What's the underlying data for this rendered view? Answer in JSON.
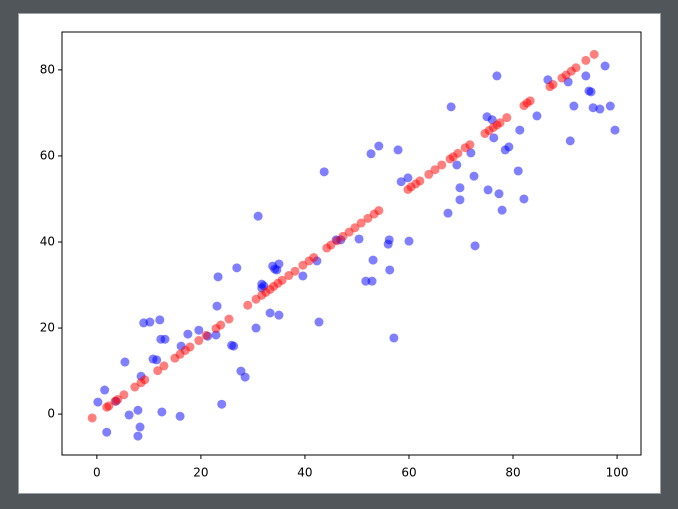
{
  "chart_data": {
    "type": "scatter",
    "xlim": [
      -6.7,
      104.6
    ],
    "ylim": [
      -9.5,
      88.8
    ],
    "xticks": [
      0,
      20,
      40,
      60,
      80,
      100
    ],
    "yticks": [
      0,
      20,
      40,
      60,
      80
    ],
    "grid": false,
    "series": [
      {
        "color": "#0000ff",
        "alpha": 0.5,
        "x": [
          0.2,
          1.5,
          1.9,
          3.7,
          5.4,
          6.2,
          7.9,
          7.9,
          8.3,
          8.5,
          9.0,
          10.2,
          10.8,
          11.5,
          12.1,
          12.3,
          12.5,
          13.1,
          16.0,
          16.2,
          17.5,
          19.6,
          21.3,
          22.9,
          23.1,
          23.3,
          24.0,
          25.9,
          26.3,
          26.9,
          27.7,
          28.5,
          30.6,
          31.0,
          31.7,
          31.7,
          32.1,
          33.3,
          33.8,
          34.2,
          34.6,
          35.0,
          35.0,
          39.6,
          42.3,
          42.7,
          43.7,
          46.0,
          46.9,
          50.4,
          51.7,
          52.9,
          52.7,
          53.1,
          54.2,
          56.0,
          56.2,
          56.3,
          57.1,
          57.9,
          58.5,
          59.8,
          60.0,
          67.5,
          68.1,
          69.2,
          69.8,
          69.8,
          71.9,
          72.5,
          72.7,
          75.0,
          75.2,
          76.0,
          76.3,
          76.9,
          77.3,
          77.9,
          78.5,
          79.2,
          81.0,
          81.3,
          82.1,
          84.6,
          86.7,
          90.6,
          91.0,
          91.7,
          94.0,
          94.6,
          95.0,
          95.4,
          96.7,
          97.7,
          98.7,
          99.6
        ],
        "values": [
          2.8,
          5.6,
          -4.2,
          3.0,
          12.1,
          -0.2,
          0.9,
          -5.1,
          -3.0,
          8.8,
          21.2,
          21.4,
          12.8,
          12.6,
          21.9,
          17.4,
          0.5,
          17.4,
          -0.5,
          15.8,
          18.6,
          19.5,
          18.1,
          18.4,
          25.1,
          31.9,
          2.3,
          16.0,
          15.8,
          34.0,
          10.0,
          8.6,
          20.0,
          46.0,
          30.2,
          29.3,
          29.8,
          23.5,
          34.4,
          33.7,
          33.5,
          34.9,
          23.0,
          32.1,
          35.6,
          21.4,
          56.3,
          40.5,
          40.5,
          40.7,
          30.9,
          30.9,
          60.5,
          35.8,
          62.3,
          39.5,
          40.5,
          33.5,
          17.7,
          61.4,
          54.0,
          54.9,
          40.2,
          46.7,
          71.4,
          57.9,
          49.8,
          52.6,
          60.7,
          55.3,
          39.1,
          69.1,
          52.1,
          68.4,
          64.2,
          78.6,
          51.2,
          47.4,
          61.4,
          62.1,
          56.5,
          66.0,
          50.0,
          69.3,
          77.7,
          77.2,
          63.5,
          71.6,
          78.6,
          75.1,
          74.9,
          71.2,
          70.9,
          80.9,
          71.6,
          66.0
        ]
      },
      {
        "color": "#ff0000",
        "alpha": 0.5,
        "x": [
          -0.9,
          1.9,
          2.3,
          3.5,
          4.0,
          5.2,
          7.3,
          8.5,
          9.2,
          11.7,
          12.9,
          15.0,
          16.0,
          17.0,
          17.9,
          19.6,
          21.0,
          22.9,
          23.8,
          25.4,
          29.0,
          30.6,
          31.7,
          32.5,
          33.3,
          34.0,
          34.8,
          35.6,
          36.9,
          38.1,
          39.6,
          40.8,
          41.7,
          44.2,
          45.0,
          46.2,
          47.3,
          48.5,
          49.6,
          50.8,
          52.1,
          53.3,
          54.2,
          59.8,
          60.4,
          61.3,
          62.1,
          63.8,
          65.0,
          66.3,
          67.9,
          68.5,
          69.4,
          70.8,
          71.7,
          74.6,
          75.4,
          76.2,
          76.9,
          77.5,
          78.8,
          82.1,
          82.7,
          83.3,
          87.1,
          87.7,
          89.4,
          90.2,
          91.2,
          92.1,
          94.0,
          95.6
        ],
        "values": [
          -0.9,
          1.6,
          1.9,
          3.0,
          3.4,
          4.5,
          6.3,
          7.3,
          8.0,
          10.1,
          11.2,
          13.0,
          13.9,
          14.8,
          15.6,
          17.1,
          18.3,
          19.9,
          20.7,
          22.1,
          25.3,
          26.7,
          27.6,
          28.3,
          29.0,
          29.7,
          30.4,
          31.1,
          32.2,
          33.2,
          34.6,
          35.6,
          36.4,
          38.6,
          39.3,
          40.3,
          41.3,
          42.3,
          43.3,
          44.4,
          45.5,
          46.5,
          47.3,
          52.2,
          52.8,
          53.5,
          54.2,
          55.7,
          56.8,
          57.9,
          59.3,
          59.8,
          60.6,
          61.9,
          62.6,
          65.2,
          65.9,
          66.6,
          67.2,
          67.7,
          68.9,
          71.7,
          72.3,
          72.8,
          76.1,
          76.6,
          78.1,
          78.8,
          79.7,
          80.5,
          82.2,
          83.6
        ]
      }
    ]
  }
}
